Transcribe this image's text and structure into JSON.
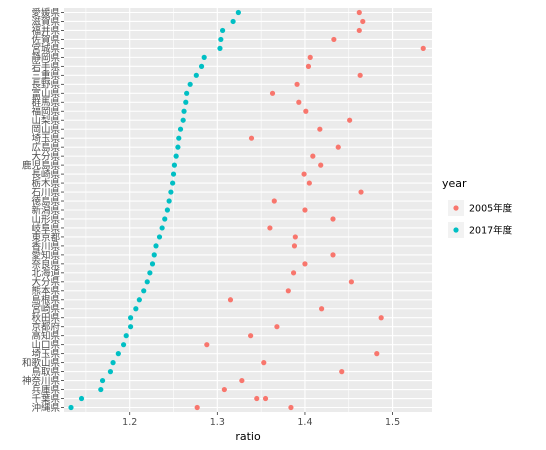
{
  "chart_data": {
    "type": "scatter",
    "title": "",
    "xlabel": "ratio",
    "ylabel": "",
    "xlim": [
      1.125,
      1.545
    ],
    "x_ticks": [
      1.2,
      1.3,
      1.4,
      1.5
    ],
    "x_tick_labels": [
      "1.2",
      "1.3",
      "1.4",
      "1.5"
    ],
    "grid": true,
    "legend": {
      "title": "year",
      "position": "right"
    },
    "colors": {
      "2005年度": "#F8766D",
      "2017年度": "#00BFC4"
    },
    "categories": [
      "愛媛県",
      "滋賀県",
      "福井県",
      "佐賀県",
      "宮城県",
      "静岡県",
      "岩手県",
      "三重県",
      "長野県",
      "富山県",
      "群馬県",
      "福岡県",
      "山梨県",
      "岡山県",
      "埼玉県",
      "広島県",
      "大分県",
      "鹿児島県",
      "長崎県",
      "栃木県",
      "石川県",
      "徳島県",
      "新潟県",
      "山形県",
      "岐阜県",
      "東京都",
      "香川県",
      "愛知県",
      "奈良県",
      "北海道",
      "大分県",
      "熊本県",
      "島根県",
      "宮崎県",
      "秋田県",
      "京都府",
      "高知県",
      "山口県",
      "埼玉県",
      "和歌山県",
      "鳥取県",
      "神奈川県",
      "兵庫県",
      "千葉県",
      "沖縄県"
    ],
    "series": [
      {
        "name": "2005年度",
        "values": [
          1.462,
          1.466,
          1.462,
          1.433,
          1.535,
          1.406,
          1.404,
          1.463,
          1.391,
          1.363,
          1.393,
          1.401,
          1.451,
          1.417,
          1.339,
          1.438,
          1.409,
          1.418,
          1.399,
          1.405,
          1.464,
          1.365,
          1.4,
          1.432,
          1.36,
          1.389,
          1.388,
          1.432,
          1.4,
          1.387,
          1.453,
          1.381,
          1.315,
          1.419,
          1.487,
          1.368,
          1.338,
          1.288,
          1.482,
          1.353,
          1.442,
          1.328,
          1.308,
          1.355,
          1.384
        ]
      },
      {
        "name": "2017年度",
        "values": [
          1.324,
          1.318,
          1.306,
          1.304,
          1.303,
          1.285,
          1.282,
          1.276,
          1.269,
          1.265,
          1.264,
          1.262,
          1.261,
          1.258,
          1.256,
          1.255,
          1.253,
          1.251,
          1.25,
          1.249,
          1.247,
          1.245,
          1.243,
          1.24,
          1.237,
          1.234,
          1.23,
          1.228,
          1.226,
          1.223,
          1.22,
          1.216,
          1.211,
          1.207,
          1.201,
          1.201,
          1.196,
          1.193,
          1.187,
          1.181,
          1.178,
          1.169,
          1.167,
          1.145,
          1.133
        ]
      }
    ],
    "extra_series_2005": [
      {
        "category_index": 44,
        "value": 1.277
      },
      {
        "category_index": 43,
        "value": 1.345
      }
    ]
  }
}
